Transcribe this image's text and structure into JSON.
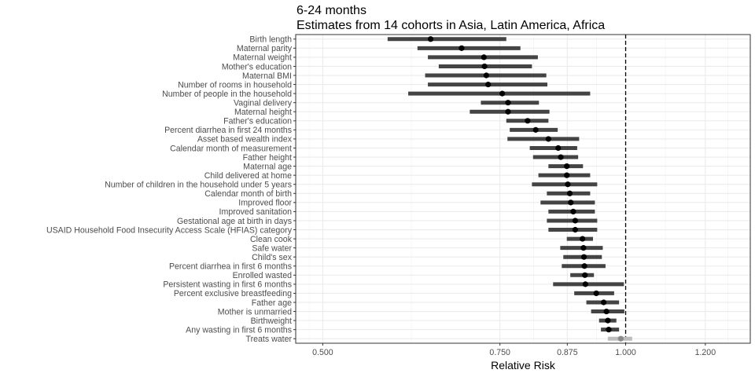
{
  "chart_data": {
    "type": "forest",
    "title": "6-24 months",
    "subtitle": "Estimates from 14 cohorts in Asia, Latin America, Africa",
    "xlabel": "Relative Risk",
    "ylabel": "",
    "x_scale": "log",
    "xlim": [
      0.47,
      1.33
    ],
    "x_ticks": [
      "0.500",
      "0.750",
      "0.875",
      "1.000",
      "1.200"
    ],
    "reference_line": 1.0,
    "grid": true,
    "rows": [
      {
        "label": "Birth length",
        "estimate": 0.64,
        "lower": 0.58,
        "upper": 0.761
      },
      {
        "label": "Maternal parity",
        "estimate": 0.687,
        "lower": 0.621,
        "upper": 0.786
      },
      {
        "label": "Maternal weight",
        "estimate": 0.723,
        "lower": 0.636,
        "upper": 0.818
      },
      {
        "label": "Mother's education",
        "estimate": 0.724,
        "lower": 0.652,
        "upper": 0.807
      },
      {
        "label": "Maternal BMI",
        "estimate": 0.727,
        "lower": 0.632,
        "upper": 0.834
      },
      {
        "label": "Number of rooms in household",
        "estimate": 0.73,
        "lower": 0.636,
        "upper": 0.836
      },
      {
        "label": "Number of people in the household",
        "estimate": 0.754,
        "lower": 0.608,
        "upper": 0.922
      },
      {
        "label": "Vaginal delivery",
        "estimate": 0.764,
        "lower": 0.718,
        "upper": 0.82
      },
      {
        "label": "Maternal height",
        "estimate": 0.764,
        "lower": 0.7,
        "upper": 0.84
      },
      {
        "label": "Father's education",
        "estimate": 0.799,
        "lower": 0.761,
        "upper": 0.838
      },
      {
        "label": "Percent diarrhea in first 24 months",
        "estimate": 0.814,
        "lower": 0.767,
        "upper": 0.856
      },
      {
        "label": "Asset based wealth index",
        "estimate": 0.838,
        "lower": 0.763,
        "upper": 0.899
      },
      {
        "label": "Calendar month of measurement",
        "estimate": 0.857,
        "lower": 0.803,
        "upper": 0.895
      },
      {
        "label": "Father height",
        "estimate": 0.862,
        "lower": 0.809,
        "upper": 0.897
      },
      {
        "label": "Maternal age",
        "estimate": 0.874,
        "lower": 0.838,
        "upper": 0.907
      },
      {
        "label": "Child delivered at home",
        "estimate": 0.874,
        "lower": 0.819,
        "upper": 0.922
      },
      {
        "label": "Number of children in the household under 5 years",
        "estimate": 0.876,
        "lower": 0.807,
        "upper": 0.937
      },
      {
        "label": "Calendar month of birth",
        "estimate": 0.88,
        "lower": 0.835,
        "upper": 0.922
      },
      {
        "label": "Improved floor",
        "estimate": 0.882,
        "lower": 0.823,
        "upper": 0.932
      },
      {
        "label": "Improved sanitation",
        "estimate": 0.887,
        "lower": 0.838,
        "upper": 0.932
      },
      {
        "label": "Gestational age at birth in days",
        "estimate": 0.891,
        "lower": 0.835,
        "upper": 0.937
      },
      {
        "label": "USAID Household Food Insecurity Access Scale (HFIAS) category",
        "estimate": 0.891,
        "lower": 0.838,
        "upper": 0.937
      },
      {
        "label": "Clean cook",
        "estimate": 0.906,
        "lower": 0.874,
        "upper": 0.928
      },
      {
        "label": "Safe water",
        "estimate": 0.908,
        "lower": 0.861,
        "upper": 0.949
      },
      {
        "label": "Child's sex",
        "estimate": 0.909,
        "lower": 0.867,
        "upper": 0.947
      },
      {
        "label": "Percent diarrhea in first 6 months",
        "estimate": 0.91,
        "lower": 0.864,
        "upper": 0.955
      },
      {
        "label": "Enrolled wasted",
        "estimate": 0.911,
        "lower": 0.881,
        "upper": 0.93
      },
      {
        "label": "Persistent wasting in first 6 months",
        "estimate": 0.912,
        "lower": 0.847,
        "upper": 0.996
      },
      {
        "label": "Percent exclusive breastfeeding",
        "estimate": 0.935,
        "lower": 0.889,
        "upper": 0.974
      },
      {
        "label": "Father age",
        "estimate": 0.951,
        "lower": 0.914,
        "upper": 0.985
      },
      {
        "label": "Mother is unmarried",
        "estimate": 0.957,
        "lower": 0.924,
        "upper": 0.997
      },
      {
        "label": "Birthweight",
        "estimate": 0.96,
        "lower": 0.941,
        "upper": 0.979
      },
      {
        "label": "Any wasting in first 6 months",
        "estimate": 0.962,
        "lower": 0.945,
        "upper": 0.985
      },
      {
        "label": "Treats water",
        "estimate": 0.989,
        "lower": 0.96,
        "upper": 1.015,
        "faded": true
      }
    ],
    "colors": {
      "ci": "#444444",
      "point": "#000000",
      "faded_ci": "#bdbdbd",
      "faded_point": "#8a8a8a",
      "grid_major": "#ebebeb",
      "grid_minor": "#f5f5f5",
      "panel_border": "#333333",
      "text": "#4d4d4d"
    }
  }
}
